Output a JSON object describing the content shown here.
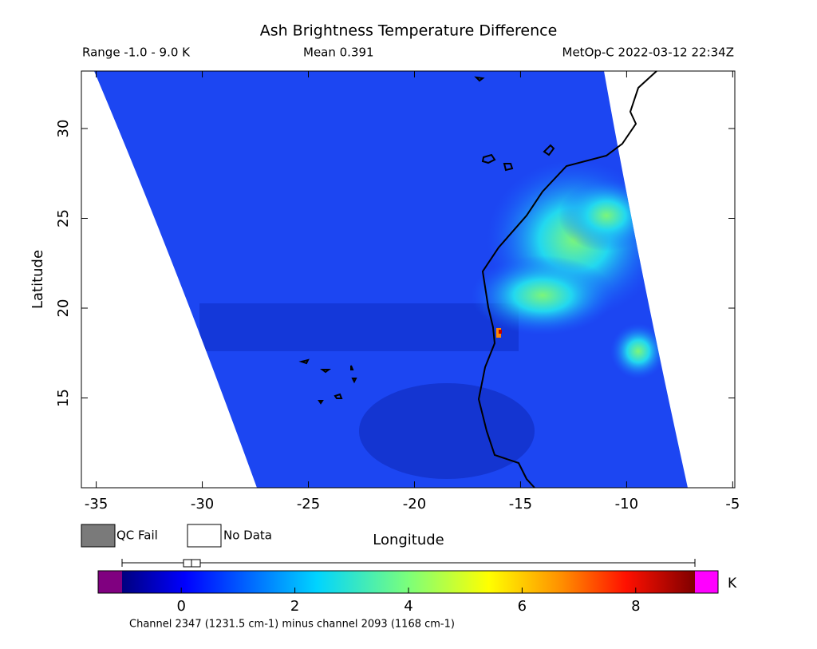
{
  "title": "Ash Brightness Temperature Difference",
  "subtitle": {
    "range": "Range -1.0 - 9.0 K",
    "mean": "Mean 0.391",
    "source": "MetOp-C 2022-03-12 22:34Z"
  },
  "map": {
    "xlabel": "Longitude",
    "ylabel": "Latitude",
    "xlim": [
      -35.7,
      -4.9
    ],
    "ylim": [
      10,
      33.2
    ],
    "xticks": [
      -35,
      -30,
      -25,
      -20,
      -15,
      -10,
      -5
    ],
    "yticks": [
      15,
      20,
      25,
      30
    ]
  },
  "legend": {
    "qc_fail": "QC Fail",
    "no_data": "No Data"
  },
  "colorbar": {
    "lim": [
      -1,
      9
    ],
    "ticks": [
      0,
      2,
      4,
      6,
      8
    ],
    "unit": "K",
    "caption": "Channel 2347 (1231.5 cm-1) minus channel 2093 (1168 cm-1)"
  }
}
